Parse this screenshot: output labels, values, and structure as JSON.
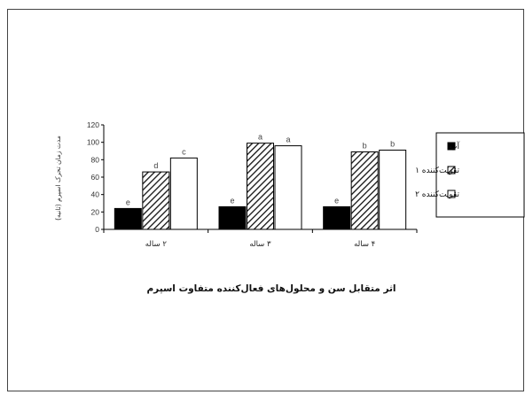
{
  "chart_data": {
    "type": "bar",
    "title": "اثر متقابل سن و محلول‌های فعال‌کننده متفاوت اسپرم",
    "ylabel": "مدت زمان تحرک اسپرم (ثانیه)",
    "xlabel": "",
    "categories": [
      "۲ ساله",
      "۳ ساله",
      "۴ ساله"
    ],
    "ylim": [
      0,
      120
    ],
    "yticks": [
      0,
      20,
      40,
      60,
      80,
      100,
      120
    ],
    "legend_position": "right",
    "grid": false,
    "series": [
      {
        "name": "آب",
        "pattern": "solid",
        "color": "#000000",
        "values": [
          24,
          26,
          26
        ],
        "labels": [
          "e",
          "e",
          "e"
        ]
      },
      {
        "name": "تقویت‌کننده ۱",
        "pattern": "hatch",
        "color": "#555555",
        "values": [
          66,
          99,
          89
        ],
        "labels": [
          "d",
          "a",
          "b"
        ]
      },
      {
        "name": "تقویت‌کننده ۲",
        "pattern": "white",
        "color": "#ffffff",
        "values": [
          82,
          96,
          91
        ],
        "labels": [
          "c",
          "a",
          "b"
        ]
      }
    ]
  }
}
